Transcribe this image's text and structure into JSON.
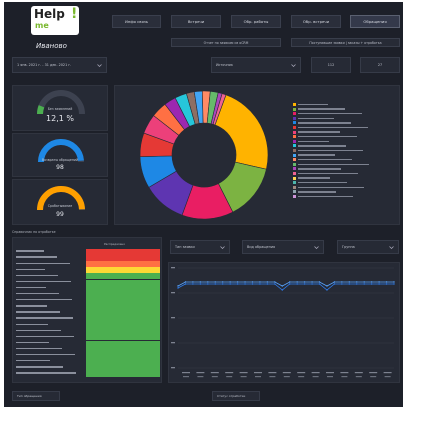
{
  "logo": {
    "word": "Help",
    "bang": "!",
    "me": "me",
    "city": "Иваново"
  },
  "nav": [
    {
      "label": "Инфо связь"
    },
    {
      "label": "Встречи"
    },
    {
      "label": "Обр. работы"
    },
    {
      "label": "Обр. встречи"
    },
    {
      "label": "Обращения"
    }
  ],
  "subtabs": [
    {
      "label": "Отчет по заявкам из оСRM"
    },
    {
      "label": "Поступившие заявки | заказы + отработка"
    }
  ],
  "filters": {
    "date_range": "1 янв. 2021 г. - 31 дек. 2021 г.",
    "source": "Источник",
    "count_a": "112",
    "count_b": "27"
  },
  "gauges": [
    {
      "title": "Без заявлений",
      "value": "12,1 %",
      "color": "#4caf50",
      "fraction": 0.121
    },
    {
      "title": "Возвраты обращений",
      "value": "98",
      "color": "#1e88e5",
      "fraction": 0.98
    },
    {
      "title": "Срабатывание",
      "value": "99",
      "color": "#ffa000",
      "fraction": 0.99
    }
  ],
  "chart_data": {
    "type": "pie",
    "slices": [
      {
        "value": 23,
        "color": "#ffb300"
      },
      {
        "value": 14,
        "color": "#7cb342"
      },
      {
        "value": 13,
        "color": "#e91e63"
      },
      {
        "value": 11,
        "color": "#5e35b1"
      },
      {
        "value": 8,
        "color": "#1e88e5"
      },
      {
        "value": 6,
        "color": "#e53935"
      },
      {
        "value": 5,
        "color": "#ec407a"
      },
      {
        "value": 4,
        "color": "#ff7043"
      },
      {
        "value": 3,
        "color": "#9c27b0"
      },
      {
        "value": 3,
        "color": "#26c6da"
      },
      {
        "value": 2,
        "color": "#8d6e63"
      },
      {
        "value": 2,
        "color": "#42a5f5"
      },
      {
        "value": 2,
        "color": "#ff8a65"
      },
      {
        "value": 2,
        "color": "#66bb6a"
      },
      {
        "value": 1,
        "color": "#ab47bc"
      },
      {
        "value": 1,
        "color": "#f06292"
      }
    ],
    "legend_colors": [
      "#ffb300",
      "#7cb342",
      "#e91e63",
      "#5e35b1",
      "#1e88e5",
      "#e53935",
      "#ec407a",
      "#ff7043",
      "#9c27b0",
      "#26c6da",
      "#8d6e63",
      "#42a5f5",
      "#ff8a65",
      "#66bb6a",
      "#ab47bc",
      "#f06292",
      "#ffd54f",
      "#4db6ac",
      "#a1887f",
      "#90a4ae",
      "#ce93d8"
    ],
    "line_series": [
      {
        "color": "#2f7ff2",
        "values": [
          80,
          84,
          84,
          84,
          84,
          84,
          84,
          84,
          84,
          84,
          84,
          84,
          84,
          84,
          78,
          84,
          84,
          84,
          84,
          84,
          78,
          84,
          84,
          84,
          84,
          84,
          84,
          84,
          84,
          84
        ]
      },
      {
        "color": "#58a4ff",
        "values": [
          82,
          86,
          86,
          86,
          86,
          86,
          86,
          86,
          86,
          86,
          86,
          86,
          86,
          86,
          82,
          86,
          86,
          86,
          86,
          86,
          82,
          86,
          86,
          86,
          86,
          86,
          86,
          86,
          86,
          86
        ]
      }
    ]
  },
  "table": {
    "title": "Справочник по отработке",
    "header": "Распределено",
    "cell_colors": [
      "#e53935",
      "#e53935",
      "#ff7043",
      "#fdd835",
      "#4caf50",
      "#4caf50",
      "#4caf50",
      "#4caf50",
      "#4caf50",
      "#4caf50",
      "#4caf50",
      "#4caf50",
      "#4caf50",
      "#4caf50",
      "#4caf50",
      "#4caf50",
      "#4caf50",
      "#4caf50",
      "#4caf50",
      "#4caf50",
      "#4caf50"
    ]
  },
  "line_filters": [
    {
      "label": "Тип заявки"
    },
    {
      "label": "Вид обращения"
    },
    {
      "label": "Группа"
    }
  ],
  "footer": {
    "left": "Тип обращения",
    "right": "Статус отработки"
  }
}
